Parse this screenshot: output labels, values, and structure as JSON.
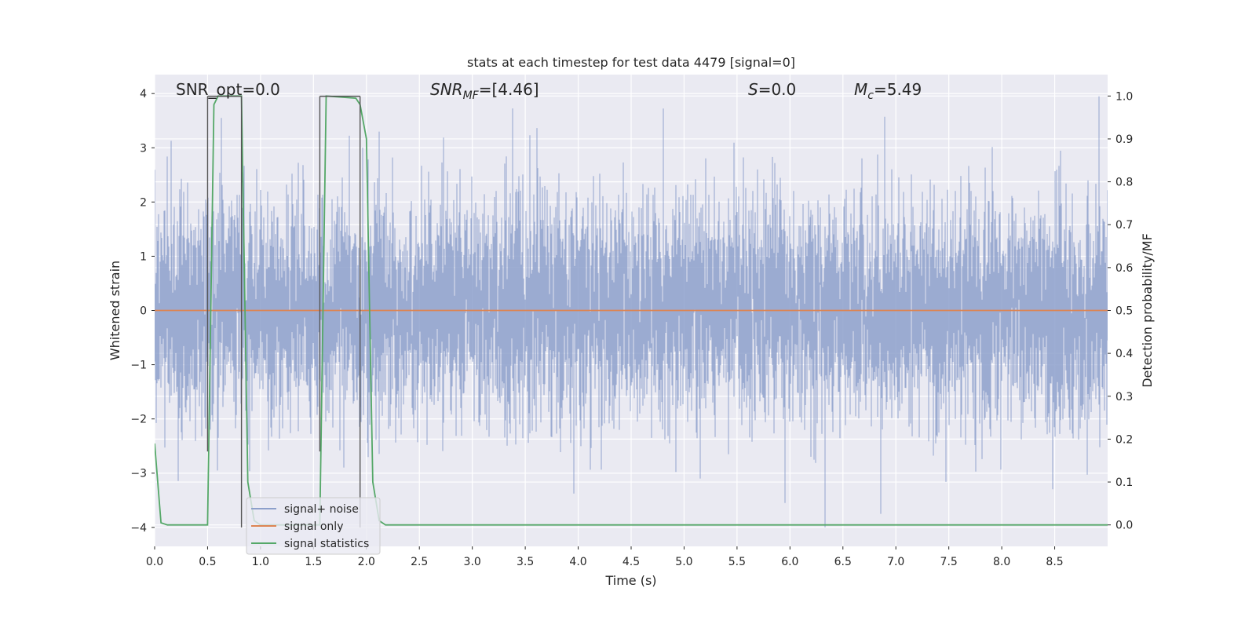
{
  "chart_data": {
    "type": "line",
    "title": "stats at each timestep for test data 4479 [signal=0]",
    "xlabel": "Time (s)",
    "ylabel_left": "Whitened strain",
    "ylabel_right": "Detection probability/MF",
    "xlim": [
      0.0,
      9.0
    ],
    "ylim_left": [
      -4.35,
      4.35
    ],
    "ylim_right": [
      -0.05,
      1.05
    ],
    "x_ticks": [
      "0.0",
      "0.5",
      "1.0",
      "1.5",
      "2.0",
      "2.5",
      "3.0",
      "3.5",
      "4.0",
      "4.5",
      "5.0",
      "5.5",
      "6.0",
      "6.5",
      "7.0",
      "7.5",
      "8.0",
      "8.5"
    ],
    "y_ticks_left": [
      "4",
      "3",
      "2",
      "1",
      "0",
      "−1",
      "−2",
      "−3",
      "−4"
    ],
    "y_ticks_right": [
      "1.0",
      "0.9",
      "0.8",
      "0.7",
      "0.6",
      "0.5",
      "0.4",
      "0.3",
      "0.2",
      "0.1",
      "0.0"
    ],
    "grid": true,
    "annotations": [
      {
        "name": "snr-opt",
        "text": "SNR_opt=0.0"
      },
      {
        "name": "snr-mf",
        "text": "SNR_MF=[4.46]"
      },
      {
        "name": "s-value",
        "text": "S=0.0"
      },
      {
        "name": "mc-value",
        "text": "M_c=5.49"
      }
    ],
    "legend": {
      "position": "lower-left",
      "entries": [
        {
          "label": "signal+ noise",
          "color": "#8da0cb"
        },
        {
          "label": "signal only",
          "color": "#dd8452"
        },
        {
          "label": "signal statistics",
          "color": "#55a868"
        }
      ]
    },
    "detection_windows": [
      [
        0.5,
        0.82
      ],
      [
        1.56,
        1.94
      ]
    ],
    "series": [
      {
        "name": "signal+ noise",
        "axis": "left",
        "color": "#8da0cb",
        "kind": "noise",
        "std": 1.0,
        "sample_rate": 2048,
        "notable_extremes": [
          [
            8.92,
            3.95
          ],
          [
            6.33,
            -4.0
          ],
          [
            0.63,
            3.55
          ],
          [
            6.86,
            -3.75
          ],
          [
            5.95,
            -3.55
          ]
        ]
      },
      {
        "name": "signal only",
        "axis": "left",
        "color": "#dd8452",
        "x": [
          0.0,
          9.0
        ],
        "y": [
          0.0,
          0.0
        ]
      },
      {
        "name": "signal statistics",
        "axis": "right",
        "color": "#55a868",
        "x": [
          0.0,
          0.06,
          0.12,
          0.5,
          0.56,
          0.6,
          0.82,
          0.88,
          0.94,
          1.0,
          1.56,
          1.62,
          1.9,
          1.94,
          2.0,
          2.06,
          2.12,
          2.18,
          2.3,
          9.0
        ],
        "y": [
          0.19,
          0.005,
          0.0,
          0.0,
          0.98,
          1.0,
          1.0,
          0.1,
          0.01,
          0.0,
          0.0,
          1.0,
          0.995,
          0.98,
          0.9,
          0.1,
          0.01,
          0.0,
          0.0,
          0.0
        ]
      }
    ]
  }
}
